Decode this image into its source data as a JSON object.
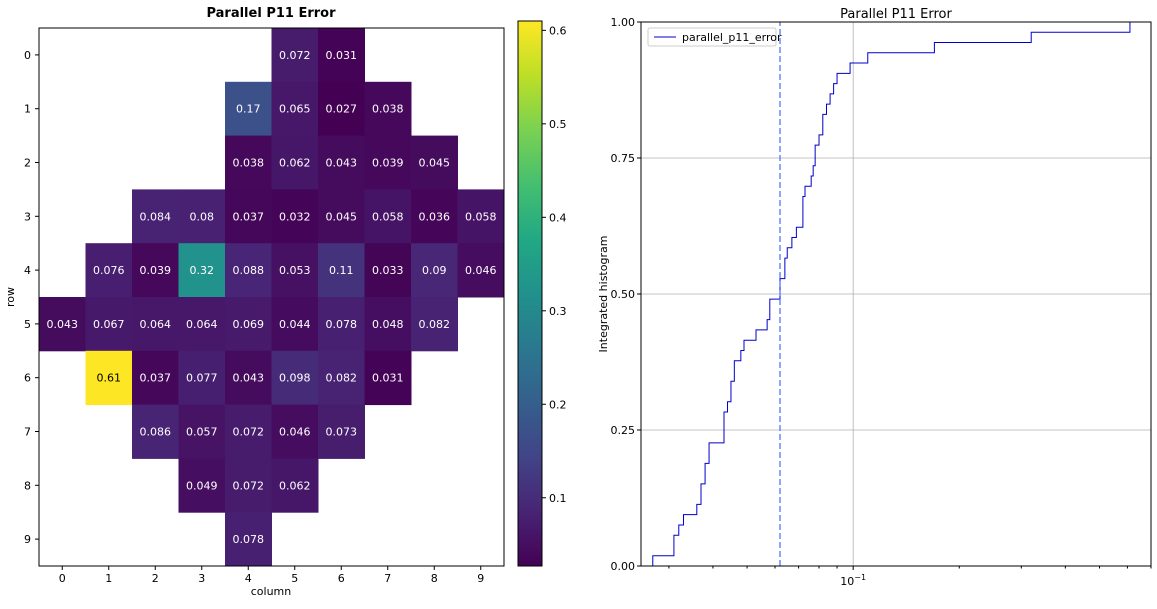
{
  "chart_data": [
    {
      "type": "heatmap",
      "title": "Parallel P11 Error",
      "xlabel": "column",
      "ylabel": "row",
      "columns": [
        0,
        1,
        2,
        3,
        4,
        5,
        6,
        7,
        8,
        9
      ],
      "rows": [
        0,
        1,
        2,
        3,
        4,
        5,
        6,
        7,
        8,
        9
      ],
      "values": [
        [
          null,
          null,
          null,
          null,
          null,
          0.072,
          0.031,
          null,
          null,
          null
        ],
        [
          null,
          null,
          null,
          null,
          0.17,
          0.065,
          0.027,
          0.038,
          null,
          null
        ],
        [
          null,
          null,
          null,
          null,
          0.038,
          0.062,
          0.043,
          0.039,
          0.045,
          null
        ],
        [
          null,
          null,
          0.084,
          0.08,
          0.037,
          0.032,
          0.045,
          0.058,
          0.036,
          0.058
        ],
        [
          null,
          0.076,
          0.039,
          0.32,
          0.088,
          0.053,
          0.11,
          0.033,
          0.09,
          0.046
        ],
        [
          0.043,
          0.067,
          0.064,
          0.064,
          0.069,
          0.044,
          0.078,
          0.048,
          0.082,
          null
        ],
        [
          null,
          0.61,
          0.037,
          0.077,
          0.043,
          0.098,
          0.082,
          0.031,
          null,
          null
        ],
        [
          null,
          null,
          0.086,
          0.057,
          0.072,
          0.046,
          0.073,
          null,
          null,
          null
        ],
        [
          null,
          null,
          null,
          0.049,
          0.072,
          0.062,
          null,
          null,
          null,
          null
        ],
        [
          null,
          null,
          null,
          null,
          0.078,
          null,
          null,
          null,
          null,
          null
        ]
      ],
      "colormap": "viridis",
      "colorbar": {
        "range": [
          0.027,
          0.61
        ],
        "ticks": [
          0.1,
          0.2,
          0.3,
          0.4,
          0.5,
          0.6
        ],
        "tick_labels": [
          "0.1",
          "0.2",
          "0.3",
          "0.4",
          "0.5",
          "0.6"
        ]
      }
    },
    {
      "type": "line",
      "title": "Parallel P11 Error",
      "xlabel": "",
      "ylabel": "Integrated histogram",
      "xscale": "log",
      "xlim": [
        0.025,
        0.7
      ],
      "ylim": [
        0,
        1
      ],
      "xticks": [
        0.1
      ],
      "xtick_labels": [
        "10^{-1}"
      ],
      "yticks": [
        0,
        0.25,
        0.5,
        0.75,
        1
      ],
      "ytick_labels": [
        "0.00",
        "0.25",
        "0.50",
        "0.75",
        "1.00"
      ],
      "grid": true,
      "legend": {
        "placement": "top-left",
        "entries": [
          "parallel_p11_error"
        ]
      },
      "series": [
        {
          "name": "parallel_p11_error",
          "color": "#0000cc",
          "style": "step-cumulative",
          "values": [
            0.027,
            0.031,
            0.031,
            0.032,
            0.033,
            0.036,
            0.037,
            0.037,
            0.038,
            0.038,
            0.039,
            0.039,
            0.043,
            0.043,
            0.043,
            0.044,
            0.045,
            0.045,
            0.046,
            0.046,
            0.048,
            0.049,
            0.053,
            0.057,
            0.058,
            0.058,
            0.062,
            0.062,
            0.064,
            0.064,
            0.065,
            0.067,
            0.069,
            0.072,
            0.072,
            0.072,
            0.073,
            0.076,
            0.077,
            0.078,
            0.078,
            0.08,
            0.082,
            0.082,
            0.084,
            0.086,
            0.088,
            0.09,
            0.098,
            0.11,
            0.17,
            0.32,
            0.61
          ]
        }
      ],
      "reference_line": {
        "x": 0.062,
        "color": "#5577ff",
        "style": "dashed"
      }
    }
  ]
}
